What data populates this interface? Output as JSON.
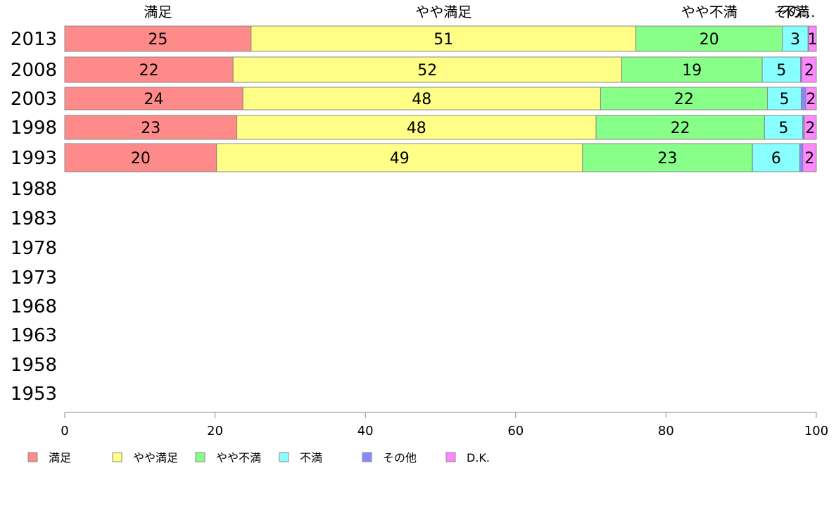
{
  "chart_data": {
    "type": "bar",
    "orientation": "horizontal",
    "stacked": true,
    "y_categories": [
      "2013",
      "2008",
      "2003",
      "1998",
      "1993",
      "1988",
      "1983",
      "1978",
      "1973",
      "1968",
      "1963",
      "1958",
      "1953"
    ],
    "series": [
      {
        "name": "満足",
        "color": "#FF8A8A",
        "values": [
          24.8,
          22.4,
          23.7,
          22.9,
          20.2,
          null,
          null,
          null,
          null,
          null,
          null,
          null,
          null
        ]
      },
      {
        "name": "やや満足",
        "color": "#FFFF88",
        "values": [
          51.2,
          51.7,
          47.6,
          47.8,
          48.7,
          null,
          null,
          null,
          null,
          null,
          null,
          null,
          null
        ]
      },
      {
        "name": "やや不満",
        "color": "#88FF88",
        "values": [
          19.5,
          18.7,
          22.2,
          22.4,
          22.6,
          null,
          null,
          null,
          null,
          null,
          null,
          null,
          null
        ]
      },
      {
        "name": "不満",
        "color": "#88FFFF",
        "values": [
          3.4,
          5.1,
          4.5,
          5.1,
          6.3,
          null,
          null,
          null,
          null,
          null,
          null,
          null,
          null
        ]
      },
      {
        "name": "その他",
        "color": "#8888FF",
        "values": [
          0.1,
          0.2,
          0.6,
          0.2,
          0.4,
          null,
          null,
          null,
          null,
          null,
          null,
          null,
          null
        ]
      },
      {
        "name": "D.K.",
        "color": "#FF88FF",
        "values": [
          1.0,
          1.9,
          1.4,
          1.6,
          1.8,
          null,
          null,
          null,
          null,
          null,
          null,
          null,
          null
        ]
      }
    ],
    "value_labels": [
      [
        "25",
        "51",
        "20",
        "3",
        "",
        "1"
      ],
      [
        "22",
        "52",
        "19",
        "5",
        "",
        "2"
      ],
      [
        "24",
        "48",
        "22",
        "5",
        "",
        "2"
      ],
      [
        "23",
        "48",
        "22",
        "5",
        "",
        "2"
      ],
      [
        "20",
        "49",
        "23",
        "6",
        "",
        "2"
      ]
    ],
    "top_category_labels": [
      "満足",
      "やや満足",
      "やや不満",
      "不満",
      "その...",
      ""
    ],
    "xlim": [
      0,
      100
    ],
    "x_ticks": [
      0,
      20,
      40,
      60,
      80,
      100
    ],
    "grid": false,
    "legend_position": "bottom-left",
    "legend_labels": [
      "満足",
      "やや満足",
      "やや不満",
      "不満",
      "その他",
      "D.K."
    ]
  }
}
